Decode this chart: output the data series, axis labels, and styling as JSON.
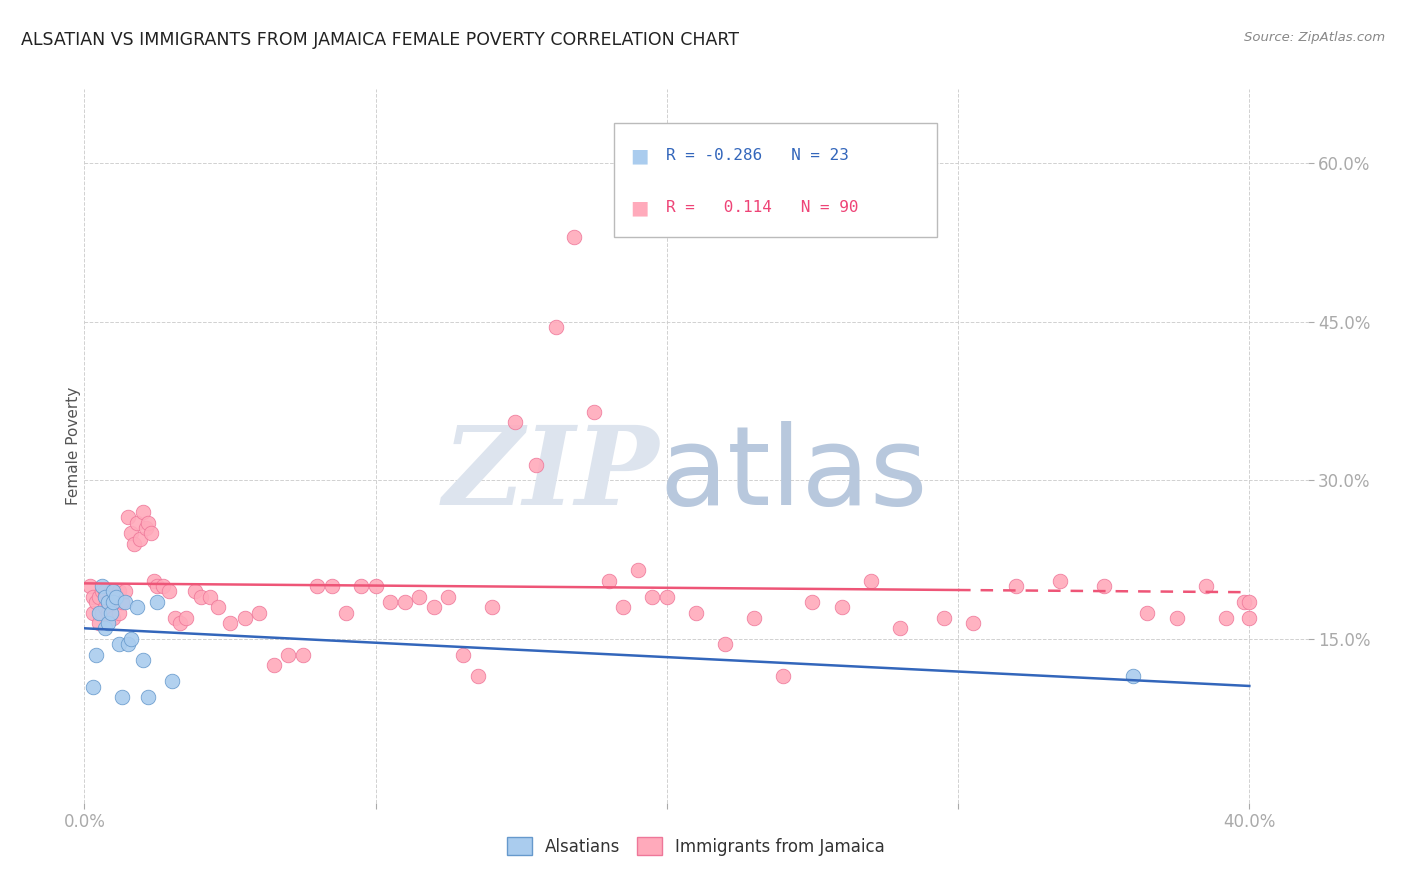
{
  "title": "ALSATIAN VS IMMIGRANTS FROM JAMAICA FEMALE POVERTY CORRELATION CHART",
  "source": "Source: ZipAtlas.com",
  "ylabel": "Female Poverty",
  "xlim": [
    0.0,
    0.42
  ],
  "ylim": [
    -0.005,
    0.67
  ],
  "xtick_positions": [
    0.0,
    0.1,
    0.2,
    0.3,
    0.4
  ],
  "xtick_labels": [
    "0.0%",
    "",
    "",
    "",
    "40.0%"
  ],
  "ytick_positions": [
    0.15,
    0.3,
    0.45,
    0.6
  ],
  "ytick_labels": [
    "15.0%",
    "30.0%",
    "45.0%",
    "60.0%"
  ],
  "background_color": "#ffffff",
  "grid_color": "#cccccc",
  "blue_scatter_color": "#aaccee",
  "blue_edge_color": "#6699cc",
  "pink_scatter_color": "#ffaabb",
  "pink_edge_color": "#ee7799",
  "blue_line_color": "#3366bb",
  "pink_line_color": "#ee5577",
  "legend_r_blue": "-0.286",
  "legend_n_blue": "23",
  "legend_r_pink": "0.114",
  "legend_n_pink": "90",
  "alsatians_x": [
    0.003,
    0.004,
    0.005,
    0.006,
    0.007,
    0.007,
    0.008,
    0.008,
    0.009,
    0.01,
    0.01,
    0.011,
    0.012,
    0.013,
    0.014,
    0.015,
    0.016,
    0.018,
    0.02,
    0.022,
    0.025,
    0.03,
    0.36
  ],
  "alsatians_y": [
    0.105,
    0.135,
    0.175,
    0.2,
    0.16,
    0.19,
    0.185,
    0.165,
    0.175,
    0.195,
    0.185,
    0.19,
    0.145,
    0.095,
    0.185,
    0.145,
    0.15,
    0.18,
    0.13,
    0.095,
    0.185,
    0.11,
    0.115
  ],
  "jamaica_x": [
    0.002,
    0.003,
    0.003,
    0.004,
    0.005,
    0.005,
    0.006,
    0.006,
    0.007,
    0.007,
    0.008,
    0.008,
    0.009,
    0.009,
    0.01,
    0.01,
    0.011,
    0.012,
    0.012,
    0.013,
    0.014,
    0.015,
    0.016,
    0.017,
    0.018,
    0.019,
    0.02,
    0.021,
    0.022,
    0.023,
    0.024,
    0.025,
    0.027,
    0.029,
    0.031,
    0.033,
    0.035,
    0.038,
    0.04,
    0.043,
    0.046,
    0.05,
    0.055,
    0.06,
    0.065,
    0.07,
    0.075,
    0.08,
    0.085,
    0.09,
    0.095,
    0.1,
    0.105,
    0.11,
    0.115,
    0.12,
    0.125,
    0.13,
    0.135,
    0.14,
    0.148,
    0.155,
    0.162,
    0.168,
    0.175,
    0.18,
    0.185,
    0.19,
    0.195,
    0.2,
    0.21,
    0.22,
    0.23,
    0.24,
    0.25,
    0.26,
    0.27,
    0.28,
    0.295,
    0.305,
    0.32,
    0.335,
    0.35,
    0.365,
    0.375,
    0.385,
    0.392,
    0.398,
    0.4,
    0.4
  ],
  "jamaica_y": [
    0.2,
    0.175,
    0.19,
    0.185,
    0.19,
    0.165,
    0.195,
    0.175,
    0.18,
    0.195,
    0.185,
    0.175,
    0.195,
    0.185,
    0.195,
    0.17,
    0.19,
    0.175,
    0.195,
    0.185,
    0.195,
    0.265,
    0.25,
    0.24,
    0.26,
    0.245,
    0.27,
    0.255,
    0.26,
    0.25,
    0.205,
    0.2,
    0.2,
    0.195,
    0.17,
    0.165,
    0.17,
    0.195,
    0.19,
    0.19,
    0.18,
    0.165,
    0.17,
    0.175,
    0.125,
    0.135,
    0.135,
    0.2,
    0.2,
    0.175,
    0.2,
    0.2,
    0.185,
    0.185,
    0.19,
    0.18,
    0.19,
    0.135,
    0.115,
    0.18,
    0.355,
    0.315,
    0.445,
    0.53,
    0.365,
    0.205,
    0.18,
    0.215,
    0.19,
    0.19,
    0.175,
    0.145,
    0.17,
    0.115,
    0.185,
    0.18,
    0.205,
    0.16,
    0.17,
    0.165,
    0.2,
    0.205,
    0.2,
    0.175,
    0.17,
    0.2,
    0.17,
    0.185,
    0.17,
    0.185
  ]
}
